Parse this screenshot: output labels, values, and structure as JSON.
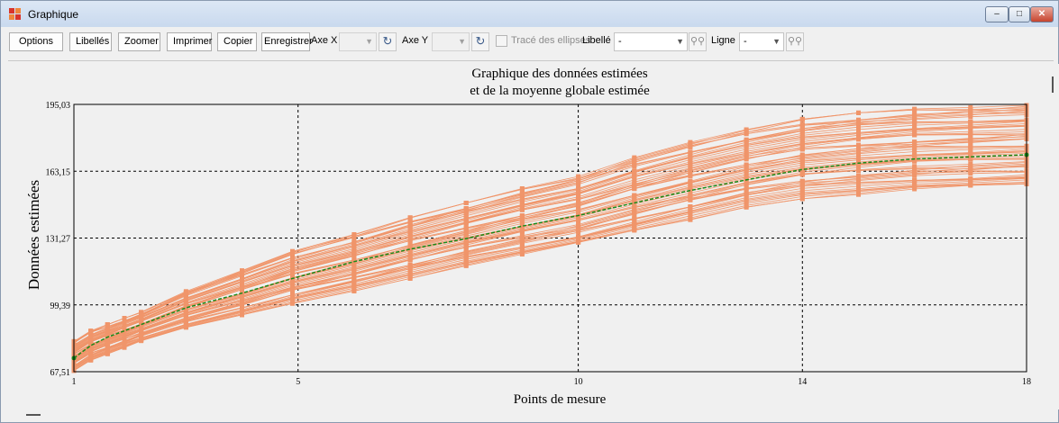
{
  "window": {
    "title": "Graphique",
    "controls": {
      "minimize": "–",
      "maximize": "□",
      "close": "✕"
    }
  },
  "toolbar": {
    "options_label": "Options",
    "libelles_label": "Libellés",
    "zoomer_label": "Zoomer",
    "imprimer_label": "Imprimer",
    "copier_label": "Copier",
    "enregistrer_label": "Enregistrer",
    "axe_x_label": "Axe X :",
    "axe_x_value": "",
    "axe_y_label": "Axe Y :",
    "axe_y_value": "",
    "ellipses_label": "Tracé des ellipses",
    "ellipses_checked": false,
    "libelle_label": "Libellé :",
    "libelle_value": "-",
    "ligne_label": "Ligne :",
    "ligne_value": "-",
    "icons": {
      "axe_x_apply": "rotate-arrow-icon",
      "axe_y_apply": "rotate-arrow-icon",
      "libelle_find": "binoculars-icon",
      "ligne_find": "binoculars-icon"
    }
  },
  "chart_data": {
    "type": "line",
    "title": "Graphique des données estimées",
    "subtitle": "et de la moyenne globale estimée",
    "xlabel": "Points de mesure",
    "ylabel": "Données estimées",
    "x_ticks": [
      1,
      5,
      10,
      14,
      18
    ],
    "y_ticks": [
      "67,51",
      "99,39",
      "131,27",
      "163,15",
      "195,03"
    ],
    "xlim": [
      1,
      18
    ],
    "ylim": [
      67.51,
      195.03
    ],
    "grid": "dashed, at ticks",
    "x": [
      1,
      1.3,
      1.6,
      1.9,
      2.2,
      3,
      4,
      4.9,
      6,
      7,
      8,
      9,
      10,
      11,
      12,
      13,
      14,
      15,
      16,
      17,
      18
    ],
    "series_color": "#f0956a",
    "mean_color": "#1a8a1a",
    "mean": [
      74,
      80,
      84,
      87,
      90,
      98,
      105,
      112,
      120,
      126,
      131,
      137,
      142,
      148,
      154,
      159,
      164,
      167,
      169,
      170,
      171
    ],
    "envelope_low": [
      68,
      73,
      76,
      79,
      82,
      88,
      94,
      100,
      106,
      112,
      118,
      123,
      128,
      134,
      140,
      146,
      150,
      152,
      154,
      155,
      156
    ],
    "envelope_high": [
      82,
      87,
      90,
      93,
      96,
      106,
      116,
      125,
      133,
      141,
      148,
      155,
      161,
      170,
      177,
      183,
      188,
      191,
      193,
      194,
      195
    ]
  }
}
